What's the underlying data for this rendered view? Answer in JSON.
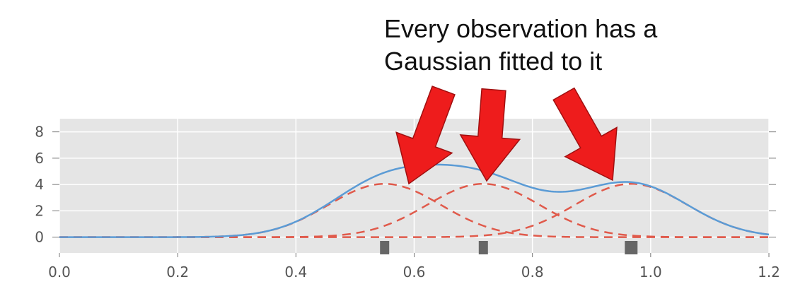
{
  "annotation": {
    "line1": "Every observation has a",
    "line2": "Gaussian fitted to it"
  },
  "chart_data": {
    "type": "line",
    "title": "",
    "xlabel": "",
    "ylabel": "",
    "xlim": [
      0.0,
      1.2
    ],
    "ylim": [
      -1.2,
      9.0
    ],
    "xticks": [
      0.0,
      0.2,
      0.4,
      0.6,
      0.8,
      1.0,
      1.2
    ],
    "xtick_labels": [
      "0.0",
      "0.2",
      "0.4",
      "0.6",
      "0.8",
      "1.0",
      "1.2"
    ],
    "yticks": [
      0,
      2,
      4,
      6,
      8
    ],
    "ytick_labels": [
      "0",
      "2",
      "4",
      "6",
      "8"
    ],
    "grid": true,
    "observations": [
      0.55,
      0.717,
      0.967
    ],
    "kernel_peak": 4.05,
    "kernel_sigma": 0.095,
    "kde_line_color": "#5b9bd5",
    "kernel_line_color": "#e05a4b",
    "rug_color": "#666666",
    "arrow_color": "#ee1c1c"
  }
}
